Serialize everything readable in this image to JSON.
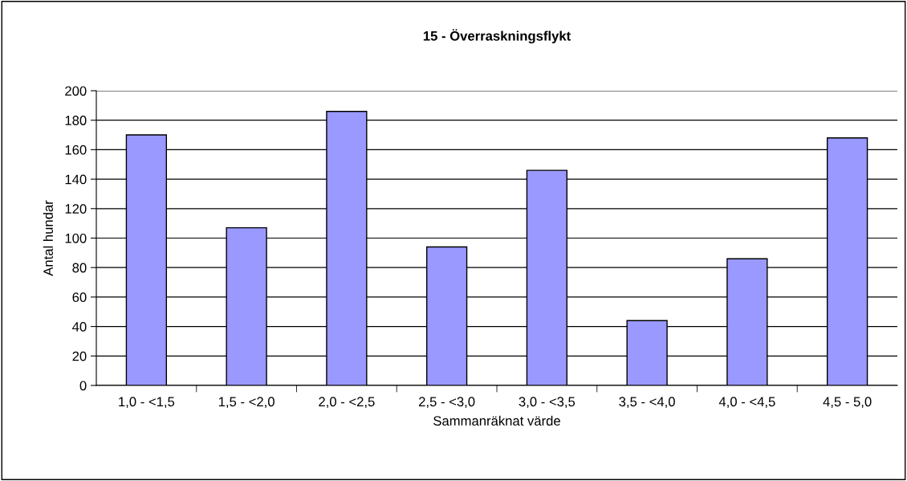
{
  "chart_data": {
    "type": "bar",
    "title": "15 - Överraskningsflykt",
    "xlabel": "Sammanräknat värde",
    "ylabel": "Antal hundar",
    "categories": [
      "1,0 - <1,5",
      "1,5 - <2,0",
      "2,0 - <2,5",
      "2,5 - <3,0",
      "3,0 - <3,5",
      "3,5 - <4,0",
      "4,0 - <4,5",
      "4,5 - 5,0"
    ],
    "values": [
      170,
      107,
      186,
      94,
      146,
      44,
      86,
      168
    ],
    "color": "#9999ff",
    "ylim": [
      0,
      200
    ],
    "yticks": [
      0,
      20,
      40,
      60,
      80,
      100,
      120,
      140,
      160,
      180,
      200
    ],
    "grid": "y",
    "legend": false
  }
}
